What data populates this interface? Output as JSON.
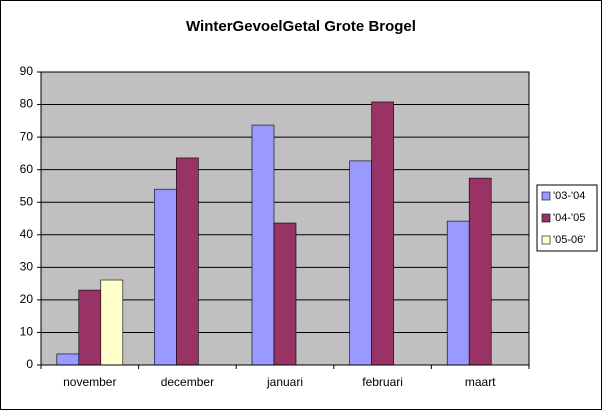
{
  "chart_data": {
    "type": "bar",
    "title": "WinterGevoelGetal Grote Brogel",
    "categories": [
      "november",
      "december",
      "januari",
      "februari",
      "maart"
    ],
    "series": [
      {
        "name": "'03-'04",
        "color": "#9999ff",
        "values": [
          3.4,
          54,
          73.7,
          62.7,
          44.2
        ]
      },
      {
        "name": "'04-'05",
        "color": "#993366",
        "values": [
          23,
          63.6,
          43.6,
          80.8,
          57.4
        ]
      },
      {
        "name": "'05-06'",
        "color": "#ffffcc",
        "values": [
          26.1,
          null,
          null,
          null,
          null
        ]
      }
    ],
    "ylim": [
      0,
      90
    ],
    "yticks": [
      0,
      10,
      20,
      30,
      40,
      50,
      60,
      70,
      80,
      90
    ],
    "grid": true,
    "legend": "right",
    "plot_background": "#c0c0c0"
  }
}
